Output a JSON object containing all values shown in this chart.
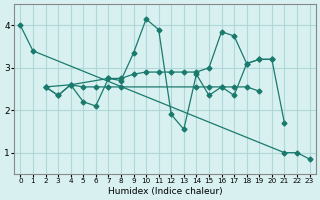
{
  "xlabel": "Humidex (Indice chaleur)",
  "bg_color": "#d8f0f0",
  "grid_color": "#b0d8d8",
  "line_color": "#1a7a6e",
  "xlim": [
    -0.5,
    23.5
  ],
  "ylim": [
    0.5,
    4.5
  ],
  "yticks": [
    1,
    2,
    3,
    4
  ],
  "xticks": [
    0,
    1,
    2,
    3,
    4,
    5,
    6,
    7,
    8,
    9,
    10,
    11,
    12,
    13,
    14,
    15,
    16,
    17,
    18,
    19,
    20,
    21,
    22,
    23
  ],
  "lines": [
    {
      "x": [
        0,
        1,
        21,
        22,
        23
      ],
      "y": [
        4.0,
        3.4,
        1.0,
        1.0,
        0.85
      ]
    },
    {
      "x": [
        2,
        3,
        4,
        5,
        6,
        7,
        8,
        14,
        15,
        16,
        17,
        18,
        19
      ],
      "y": [
        2.55,
        2.35,
        2.6,
        2.55,
        2.55,
        2.55,
        2.55,
        2.55,
        2.55,
        2.55,
        2.55,
        2.55,
        2.45
      ]
    },
    {
      "x": [
        2,
        3,
        4,
        5,
        6,
        7,
        8,
        9,
        10,
        11,
        12,
        13,
        14,
        15,
        16,
        17,
        18,
        19,
        20,
        21
      ],
      "y": [
        2.55,
        2.35,
        2.6,
        2.2,
        2.1,
        2.75,
        2.7,
        3.35,
        4.15,
        3.9,
        1.9,
        1.55,
        2.85,
        2.35,
        2.55,
        2.35,
        3.1,
        3.2,
        3.2,
        1.7
      ]
    },
    {
      "x": [
        2,
        4,
        7,
        8,
        9,
        10,
        11,
        12,
        13,
        14,
        15,
        16,
        17,
        18,
        19,
        20
      ],
      "y": [
        2.55,
        2.6,
        2.75,
        2.75,
        2.85,
        2.9,
        2.9,
        2.9,
        2.9,
        2.9,
        3.0,
        3.85,
        3.75,
        3.1,
        3.2,
        3.2
      ]
    }
  ]
}
